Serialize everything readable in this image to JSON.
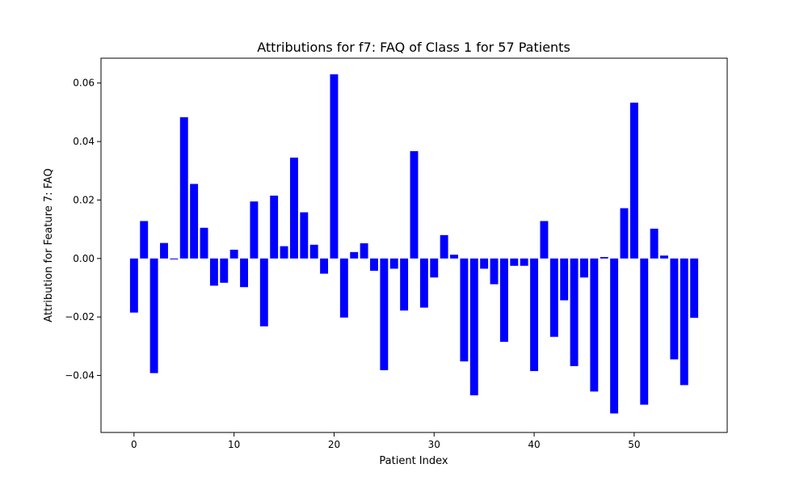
{
  "chart_data": {
    "type": "bar",
    "title": "Attributions for f7: FAQ of Class 1 for 57 Patients",
    "xlabel": "Patient Index",
    "ylabel": "Attribution for Feature 7: FAQ",
    "bar_color": "#0000ff",
    "x": [
      0,
      1,
      2,
      3,
      4,
      5,
      6,
      7,
      8,
      9,
      10,
      11,
      12,
      13,
      14,
      15,
      16,
      17,
      18,
      19,
      20,
      21,
      22,
      23,
      24,
      25,
      26,
      27,
      28,
      29,
      30,
      31,
      32,
      33,
      34,
      35,
      36,
      37,
      38,
      39,
      40,
      41,
      42,
      43,
      44,
      45,
      46,
      47,
      48,
      49,
      50,
      51,
      52,
      53,
      54,
      55,
      56
    ],
    "values": [
      -0.0185,
      0.0128,
      -0.0392,
      0.0053,
      -0.0003,
      0.0483,
      0.0255,
      0.0105,
      -0.0093,
      -0.0083,
      0.003,
      -0.0098,
      0.0195,
      -0.0232,
      0.0215,
      0.0042,
      0.0345,
      0.0158,
      0.0047,
      -0.0052,
      0.063,
      -0.0202,
      0.0022,
      0.0052,
      -0.0042,
      -0.0382,
      -0.0035,
      -0.0178,
      0.0367,
      -0.0168,
      -0.0065,
      0.008,
      0.0013,
      -0.0352,
      -0.0468,
      -0.0035,
      -0.0088,
      -0.0285,
      -0.0025,
      -0.0025,
      -0.0385,
      0.0128,
      -0.0268,
      -0.0143,
      -0.0368,
      -0.0065,
      -0.0455,
      0.0005,
      -0.053,
      0.0172,
      0.0533,
      -0.05,
      0.0102,
      0.001,
      -0.0345,
      -0.0433,
      -0.0203
    ],
    "xlim": [
      -3.3,
      59.3
    ],
    "ylim": [
      -0.0595,
      0.0685
    ],
    "xticks": [
      0,
      10,
      20,
      30,
      40,
      50
    ],
    "xtick_labels": [
      "0",
      "10",
      "20",
      "30",
      "40",
      "50"
    ],
    "yticks": [
      -0.04,
      -0.02,
      0.0,
      0.02,
      0.04,
      0.06
    ],
    "ytick_labels": [
      "−0.04",
      "−0.02",
      "0.00",
      "0.02",
      "0.04",
      "0.06"
    ],
    "grid": false,
    "legend": "none"
  }
}
